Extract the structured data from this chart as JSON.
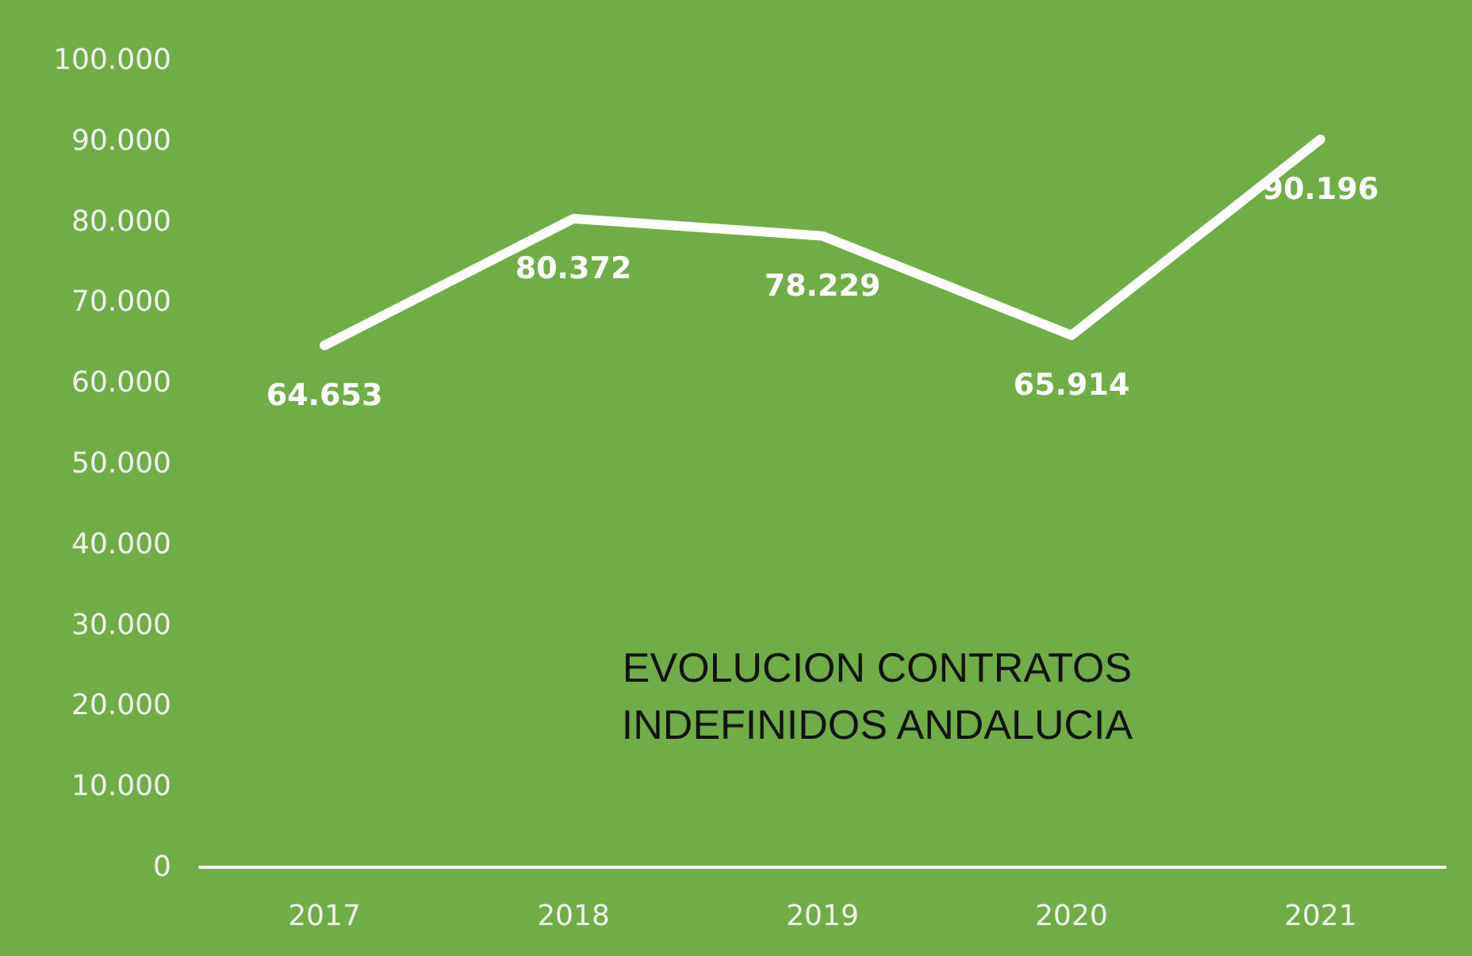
{
  "chart_data": {
    "type": "line",
    "title": "EVOLUCION CONTRATOS\nINDEFINIDOS ANDALUCIA",
    "categories": [
      "2017",
      "2018",
      "2019",
      "2020",
      "2021"
    ],
    "series": [
      {
        "color": "#ffffff",
        "values": [
          64653,
          80372,
          78229,
          65914,
          90196
        ],
        "value_labels": [
          "64.653",
          "80.372",
          "78.229",
          "65.914",
          "90.196"
        ]
      }
    ],
    "ylim": [
      0,
      100000
    ],
    "yticks": [
      {
        "value": 0,
        "label": "0"
      },
      {
        "value": 10000,
        "label": "10.000"
      },
      {
        "value": 20000,
        "label": "20.000"
      },
      {
        "value": 30000,
        "label": "30.000"
      },
      {
        "value": 40000,
        "label": "40.000"
      },
      {
        "value": 50000,
        "label": "50.000"
      },
      {
        "value": 60000,
        "label": "60.000"
      },
      {
        "value": 70000,
        "label": "70.000"
      },
      {
        "value": 80000,
        "label": "80.000"
      },
      {
        "value": 90000,
        "label": "90.000"
      },
      {
        "value": 100000,
        "label": "100.000"
      }
    ],
    "grid": false,
    "marker": "none",
    "line_style": "solid"
  }
}
